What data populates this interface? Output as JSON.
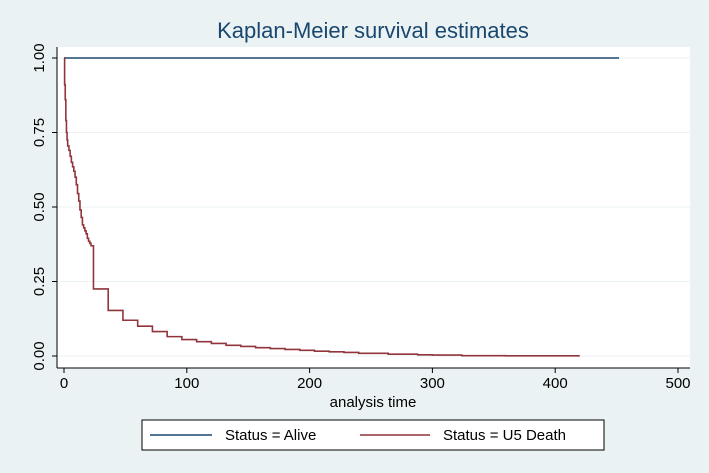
{
  "chart_data": {
    "type": "line",
    "title": "Kaplan-Meier survival estimates",
    "xlabel": "analysis time",
    "ylabel": "",
    "xlim": [
      0,
      500
    ],
    "ylim": [
      0,
      1
    ],
    "xticks": [
      0,
      100,
      200,
      300,
      400,
      500
    ],
    "yticks": [
      0,
      0.25,
      0.5,
      0.75,
      1
    ],
    "ytick_labels": [
      "0.00",
      "0.25",
      "0.50",
      "0.75",
      "1.00"
    ],
    "grid": true,
    "legend_position": "bottom",
    "step": true,
    "series": [
      {
        "name": "Status = Alive",
        "color": "#1a476f",
        "x": [
          0,
          452
        ],
        "y": [
          1,
          1
        ]
      },
      {
        "name": "Status = U5 Death",
        "color": "#90353b",
        "x": [
          0,
          0.5,
          1,
          1.5,
          2,
          2.5,
          3,
          4,
          5,
          6,
          7,
          8,
          9,
          10,
          11,
          12,
          13,
          14,
          15,
          16,
          17,
          18,
          19,
          20,
          21,
          22,
          24,
          36,
          48,
          60,
          72,
          84,
          96,
          108,
          120,
          132,
          144,
          156,
          168,
          180,
          192,
          204,
          216,
          228,
          240,
          264,
          288,
          300,
          324,
          360,
          420
        ],
        "y": [
          1,
          0.91,
          0.86,
          0.79,
          0.75,
          0.725,
          0.705,
          0.69,
          0.67,
          0.65,
          0.635,
          0.62,
          0.6,
          0.575,
          0.545,
          0.52,
          0.49,
          0.465,
          0.44,
          0.43,
          0.42,
          0.41,
          0.395,
          0.385,
          0.378,
          0.37,
          0.225,
          0.153,
          0.12,
          0.1,
          0.082,
          0.065,
          0.055,
          0.048,
          0.042,
          0.036,
          0.032,
          0.028,
          0.025,
          0.022,
          0.019,
          0.016,
          0.014,
          0.012,
          0.009,
          0.006,
          0.004,
          0.003,
          0.001,
          0.0005,
          0.0005
        ]
      }
    ]
  }
}
